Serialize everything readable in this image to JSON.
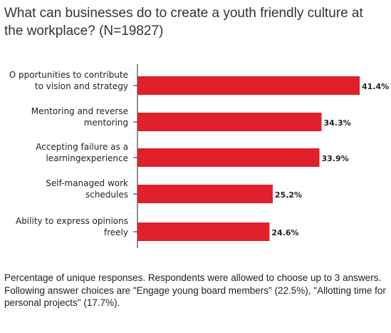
{
  "chart_data": {
    "type": "bar",
    "orientation": "horizontal",
    "title": "What can businesses do to create a youth friendly culture at the workplace? (N=19827)",
    "categories": [
      [
        "O pportunities to contribute",
        "to vision and strategy"
      ],
      [
        "Mentoring and reverse",
        "mentoring"
      ],
      [
        "Accepting failure as a",
        "learningexperience"
      ],
      [
        "Self-managed work",
        "schedules"
      ],
      [
        "Ability to express opinions",
        "freely"
      ]
    ],
    "values": [
      41.4,
      34.3,
      33.9,
      25.2,
      24.6
    ],
    "value_labels": [
      "41.4%",
      "34.3%",
      "33.9%",
      "25.2%",
      "24.6%"
    ],
    "xlim": [
      0,
      41.4
    ],
    "bar_color": "#e0202a",
    "grid": false,
    "legend": "none"
  },
  "footnote": "Percentage of unique responses. Respondents were allowed to choose up to 3 answers. Following answer choices are \"Engage young board members\" (22.5%), \"Allotting time for personal projects\" (17.7%)."
}
